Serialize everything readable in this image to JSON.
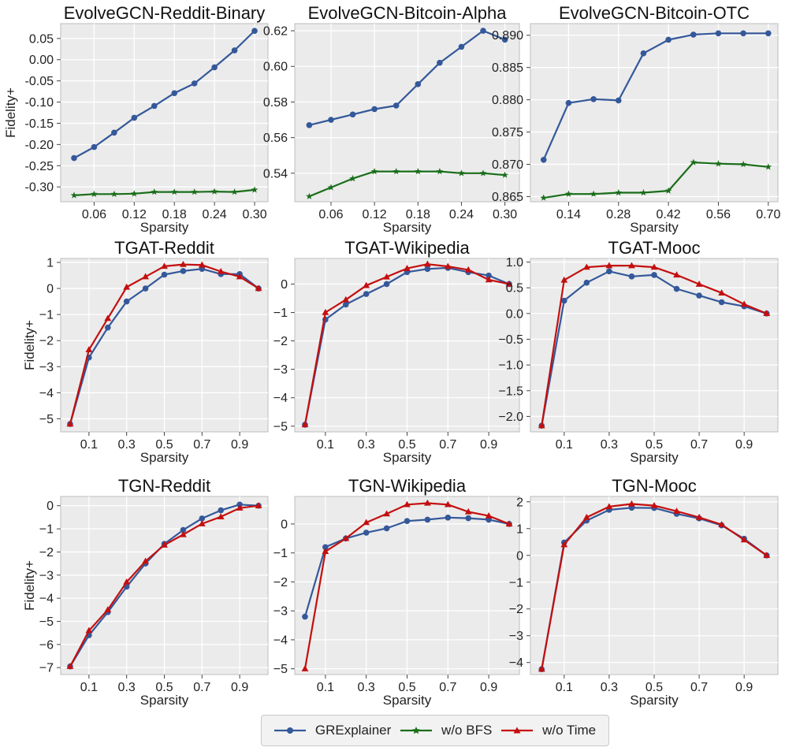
{
  "colors": {
    "series1": "#34589a",
    "series2": "#1a6e1a",
    "series3": "#c40f0f",
    "panel_bg": "#ebebeb",
    "grid": "#ffffff"
  },
  "legend": [
    {
      "label": "GRExplainer",
      "color": "#34589a",
      "marker": "circle"
    },
    {
      "label": "w/o BFS",
      "color": "#1a6e1a",
      "marker": "star"
    },
    {
      "label": "w/o Time",
      "color": "#c40f0f",
      "marker": "triangle"
    }
  ],
  "chart_data": [
    {
      "type": "line",
      "title": "EvolveGCN-Reddit-Binary",
      "xlabel": "Sparsity",
      "ylabel": "Fidelity+",
      "xlim": [
        0.01,
        0.32
      ],
      "ylim": [
        -0.335,
        0.085
      ],
      "xticks": [
        0.06,
        0.12,
        0.18,
        0.24,
        0.3
      ],
      "xtick_labels": [
        "0.06",
        "0.12",
        "0.18",
        "0.24",
        "0.30"
      ],
      "yticks": [
        -0.3,
        -0.25,
        -0.2,
        -0.15,
        -0.1,
        -0.05,
        0.0,
        0.05
      ],
      "ytick_labels": [
        "-0.30",
        "-0.25",
        "-0.20",
        "-0.15",
        "-0.10",
        "-0.05",
        "0.00",
        "0.05"
      ],
      "x": [
        0.03,
        0.06,
        0.09,
        0.12,
        0.15,
        0.18,
        0.21,
        0.24,
        0.27,
        0.3
      ],
      "series": [
        {
          "name": "GRExplainer",
          "values": [
            -0.232,
            -0.206,
            -0.172,
            -0.137,
            -0.109,
            -0.079,
            -0.056,
            -0.018,
            0.022,
            0.068
          ]
        },
        {
          "name": "w/o BFS",
          "values": [
            -0.32,
            -0.317,
            -0.317,
            -0.316,
            -0.312,
            -0.312,
            -0.312,
            -0.311,
            -0.312,
            -0.307
          ]
        }
      ]
    },
    {
      "type": "line",
      "title": "EvolveGCN-Bitcoin-Alpha",
      "xlabel": "Sparsity",
      "ylabel": "",
      "xlim": [
        0.01,
        0.32
      ],
      "ylim": [
        0.524,
        0.624
      ],
      "xticks": [
        0.06,
        0.12,
        0.18,
        0.24,
        0.3
      ],
      "xtick_labels": [
        "0.06",
        "0.12",
        "0.18",
        "0.24",
        "0.30"
      ],
      "yticks": [
        0.54,
        0.56,
        0.58,
        0.6,
        0.62
      ],
      "ytick_labels": [
        "0.54",
        "0.56",
        "0.58",
        "0.60",
        "0.62"
      ],
      "x": [
        0.03,
        0.06,
        0.09,
        0.12,
        0.15,
        0.18,
        0.21,
        0.24,
        0.27,
        0.3
      ],
      "series": [
        {
          "name": "GRExplainer",
          "values": [
            0.567,
            0.57,
            0.573,
            0.576,
            0.578,
            0.59,
            0.602,
            0.611,
            0.62,
            0.615
          ]
        },
        {
          "name": "w/o BFS",
          "values": [
            0.527,
            0.532,
            0.537,
            0.541,
            0.541,
            0.541,
            0.541,
            0.54,
            0.54,
            0.539
          ]
        }
      ]
    },
    {
      "type": "line",
      "title": "EvolveGCN-Bitcoin-OTC",
      "xlabel": "Sparsity",
      "ylabel": "",
      "xlim": [
        0.033,
        0.727
      ],
      "ylim": [
        0.8642,
        0.8918
      ],
      "xticks": [
        0.14,
        0.28,
        0.42,
        0.56,
        0.7
      ],
      "xtick_labels": [
        "0.14",
        "0.28",
        "0.42",
        "0.56",
        "0.70"
      ],
      "yticks": [
        0.865,
        0.87,
        0.875,
        0.88,
        0.885,
        0.89
      ],
      "ytick_labels": [
        "0.865",
        "0.870",
        "0.875",
        "0.880",
        "0.885",
        "0.890"
      ],
      "x": [
        0.07,
        0.14,
        0.21,
        0.28,
        0.35,
        0.42,
        0.49,
        0.56,
        0.63,
        0.7
      ],
      "series": [
        {
          "name": "GRExplainer",
          "values": [
            0.8707,
            0.8795,
            0.8801,
            0.8799,
            0.8872,
            0.8893,
            0.8901,
            0.8903,
            0.8903,
            0.8903
          ]
        },
        {
          "name": "w/o BFS",
          "values": [
            0.8648,
            0.8654,
            0.8654,
            0.8656,
            0.8656,
            0.8659,
            0.8703,
            0.8701,
            0.87,
            0.8696
          ]
        }
      ]
    },
    {
      "type": "line",
      "title": "TGAT-Reddit",
      "xlabel": "Sparsity",
      "ylabel": "Fidelity+",
      "xlim": [
        -0.05,
        1.05
      ],
      "ylim": [
        -5.5,
        1.15
      ],
      "xticks": [
        0.1,
        0.3,
        0.5,
        0.7,
        0.9
      ],
      "xtick_labels": [
        "0.1",
        "0.3",
        "0.5",
        "0.7",
        "0.9"
      ],
      "yticks": [
        -5,
        -4,
        -3,
        -2,
        -1,
        0,
        1
      ],
      "ytick_labels": [
        "−5",
        "−4",
        "−3",
        "−2",
        "−1",
        "0",
        "1"
      ],
      "x": [
        0.0,
        0.1,
        0.2,
        0.3,
        0.4,
        0.5,
        0.6,
        0.7,
        0.8,
        0.9,
        1.0
      ],
      "series": [
        {
          "name": "GRExplainer",
          "values": [
            -5.2,
            -2.65,
            -1.5,
            -0.5,
            0.0,
            0.53,
            0.67,
            0.75,
            0.55,
            0.55,
            0.0
          ]
        },
        {
          "name": "w/o Time",
          "values": [
            -5.2,
            -2.35,
            -1.15,
            0.05,
            0.45,
            0.85,
            0.92,
            0.9,
            0.65,
            0.45,
            0.0
          ]
        }
      ]
    },
    {
      "type": "line",
      "title": "TGAT-Wikipedia",
      "xlabel": "Sparsity",
      "ylabel": "",
      "xlim": [
        -0.05,
        1.05
      ],
      "ylim": [
        -5.2,
        0.9
      ],
      "xticks": [
        0.1,
        0.3,
        0.5,
        0.7,
        0.9
      ],
      "xtick_labels": [
        "0.1",
        "0.3",
        "0.5",
        "0.7",
        "0.9"
      ],
      "yticks": [
        -5,
        -4,
        -3,
        -2,
        -1,
        0
      ],
      "ytick_labels": [
        "−5",
        "−4",
        "−3",
        "−2",
        "−1",
        "0"
      ],
      "x": [
        0.0,
        0.1,
        0.2,
        0.3,
        0.4,
        0.5,
        0.6,
        0.7,
        0.8,
        0.9,
        1.0
      ],
      "series": [
        {
          "name": "GRExplainer",
          "values": [
            -4.95,
            -1.25,
            -0.72,
            -0.35,
            0.0,
            0.42,
            0.53,
            0.57,
            0.42,
            0.3,
            0.0
          ]
        },
        {
          "name": "w/o Time",
          "values": [
            -4.95,
            -1.0,
            -0.55,
            -0.05,
            0.25,
            0.55,
            0.7,
            0.62,
            0.5,
            0.15,
            0.0
          ]
        }
      ]
    },
    {
      "type": "line",
      "title": "TGAT-Mooc",
      "xlabel": "Sparsity",
      "ylabel": "",
      "xlim": [
        -0.05,
        1.05
      ],
      "ylim": [
        -2.3,
        1.07
      ],
      "xticks": [
        0.1,
        0.3,
        0.5,
        0.7,
        0.9
      ],
      "xtick_labels": [
        "0.1",
        "0.3",
        "0.5",
        "0.7",
        "0.9"
      ],
      "yticks": [
        -2.0,
        -1.5,
        -1.0,
        -0.5,
        0.0,
        0.5,
        1.0
      ],
      "ytick_labels": [
        "−2.0",
        "−1.5",
        "−1.0",
        "−0.5",
        "0.0",
        "0.5",
        "1.0"
      ],
      "x": [
        0.0,
        0.1,
        0.2,
        0.3,
        0.4,
        0.5,
        0.6,
        0.7,
        0.8,
        0.9,
        1.0
      ],
      "series": [
        {
          "name": "GRExplainer",
          "values": [
            -2.18,
            0.25,
            0.6,
            0.82,
            0.72,
            0.75,
            0.48,
            0.35,
            0.22,
            0.14,
            0.0
          ]
        },
        {
          "name": "w/o Time",
          "values": [
            -2.18,
            0.65,
            0.9,
            0.93,
            0.93,
            0.9,
            0.75,
            0.57,
            0.4,
            0.18,
            0.0
          ]
        }
      ]
    },
    {
      "type": "line",
      "title": "TGN-Reddit",
      "xlabel": "Sparsity",
      "ylabel": "Fidelity+",
      "xlim": [
        -0.05,
        1.05
      ],
      "ylim": [
        -7.3,
        0.4
      ],
      "xticks": [
        0.1,
        0.3,
        0.5,
        0.7,
        0.9
      ],
      "xtick_labels": [
        "0.1",
        "0.3",
        "0.5",
        "0.7",
        "0.9"
      ],
      "yticks": [
        -7,
        -6,
        -5,
        -4,
        -3,
        -2,
        -1,
        0
      ],
      "ytick_labels": [
        "−7",
        "−6",
        "−5",
        "−4",
        "−3",
        "−2",
        "−1",
        "0"
      ],
      "x": [
        0.0,
        0.1,
        0.2,
        0.3,
        0.4,
        0.5,
        0.6,
        0.7,
        0.8,
        0.9,
        1.0
      ],
      "series": [
        {
          "name": "GRExplainer",
          "values": [
            -6.95,
            -5.6,
            -4.6,
            -3.5,
            -2.5,
            -1.65,
            -1.05,
            -0.55,
            -0.2,
            0.05,
            0.0
          ]
        },
        {
          "name": "w/o Time",
          "values": [
            -6.95,
            -5.4,
            -4.5,
            -3.3,
            -2.4,
            -1.7,
            -1.25,
            -0.78,
            -0.48,
            -0.1,
            0.0
          ]
        }
      ]
    },
    {
      "type": "line",
      "title": "TGN-Wikipedia",
      "xlabel": "Sparsity",
      "ylabel": "",
      "xlim": [
        -0.05,
        1.05
      ],
      "ylim": [
        -5.2,
        0.95
      ],
      "xticks": [
        0.1,
        0.3,
        0.5,
        0.7,
        0.9
      ],
      "xtick_labels": [
        "0.1",
        "0.3",
        "0.5",
        "0.7",
        "0.9"
      ],
      "yticks": [
        -5,
        -4,
        -3,
        -2,
        -1,
        0
      ],
      "ytick_labels": [
        "−5",
        "−4",
        "−3",
        "−2",
        "−1",
        "0"
      ],
      "x": [
        0.0,
        0.1,
        0.2,
        0.3,
        0.4,
        0.5,
        0.6,
        0.7,
        0.8,
        0.9,
        1.0
      ],
      "series": [
        {
          "name": "GRExplainer",
          "values": [
            -3.2,
            -0.8,
            -0.5,
            -0.3,
            -0.15,
            0.1,
            0.15,
            0.22,
            0.2,
            0.15,
            0.0
          ]
        },
        {
          "name": "w/o Time",
          "values": [
            -5.0,
            -0.95,
            -0.5,
            0.05,
            0.35,
            0.67,
            0.72,
            0.67,
            0.42,
            0.28,
            0.0
          ]
        }
      ]
    },
    {
      "type": "line",
      "title": "TGN-Mooc",
      "xlabel": "Sparsity",
      "ylabel": "",
      "xlim": [
        -0.05,
        1.05
      ],
      "ylim": [
        -4.45,
        2.2
      ],
      "xticks": [
        0.1,
        0.3,
        0.5,
        0.7,
        0.9
      ],
      "xtick_labels": [
        "0.1",
        "0.3",
        "0.5",
        "0.7",
        "0.9"
      ],
      "yticks": [
        -4,
        -3,
        -2,
        -1,
        0,
        1,
        2
      ],
      "ytick_labels": [
        "−4",
        "−3",
        "−2",
        "−1",
        "0",
        "1",
        "2"
      ],
      "x": [
        0.0,
        0.1,
        0.2,
        0.3,
        0.4,
        0.5,
        0.6,
        0.7,
        0.8,
        0.9,
        1.0
      ],
      "series": [
        {
          "name": "GRExplainer",
          "values": [
            -4.25,
            0.48,
            1.3,
            1.7,
            1.78,
            1.77,
            1.55,
            1.38,
            1.12,
            0.62,
            0.0
          ]
        },
        {
          "name": "w/o Time",
          "values": [
            -4.25,
            0.4,
            1.42,
            1.82,
            1.92,
            1.86,
            1.65,
            1.42,
            1.15,
            0.58,
            0.0
          ]
        }
      ]
    }
  ]
}
